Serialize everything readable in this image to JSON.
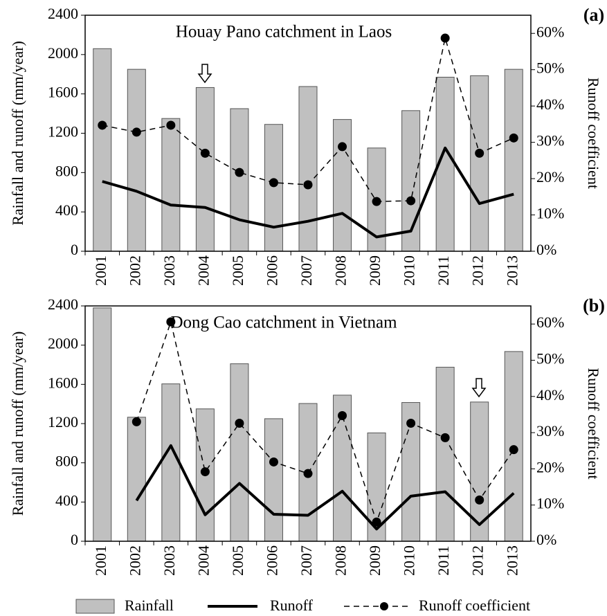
{
  "chart_data": [
    {
      "type": "combo",
      "panel_label": "(a)",
      "title": "Houay Pano catchment in Laos",
      "ylabel": "Rainfall and runoff  (mm/year)",
      "y2label": "Runoff coefficient",
      "categories": [
        "2001",
        "2002",
        "2003",
        "2004",
        "2005",
        "2006",
        "2007",
        "2008",
        "2009",
        "2010",
        "2011",
        "2012",
        "2013"
      ],
      "ylim": [
        0,
        2400
      ],
      "yticks": [
        0,
        400,
        800,
        1200,
        1600,
        2000,
        2400
      ],
      "y2lim": [
        0,
        65
      ],
      "y2ticks": [
        {
          "value": 0,
          "label": "0%"
        },
        {
          "value": 10,
          "label": "10%"
        },
        {
          "value": 20,
          "label": "20%"
        },
        {
          "value": 30,
          "label": "30%"
        },
        {
          "value": 40,
          "label": "40%"
        },
        {
          "value": 50,
          "label": "50%"
        },
        {
          "value": 60,
          "label": "60%"
        }
      ],
      "series": [
        {
          "name": "Rainfall",
          "type": "bar",
          "color": "#c0c0c0",
          "values": [
            2060,
            1850,
            1350,
            1665,
            1450,
            1290,
            1675,
            1340,
            1050,
            1430,
            1770,
            1785,
            1850
          ]
        },
        {
          "name": "Runoff",
          "type": "line",
          "color": "#000000",
          "values": [
            710,
            610,
            470,
            445,
            320,
            245,
            305,
            385,
            145,
            205,
            1050,
            485,
            580
          ]
        },
        {
          "name": "Runoff coefficient",
          "type": "line",
          "axis": "y2",
          "dashed": true,
          "marker": "circle",
          "color": "#000000",
          "values": [
            34.7,
            32.8,
            34.7,
            27.0,
            21.7,
            18.9,
            18.3,
            28.8,
            13.7,
            13.9,
            58.7,
            27.0,
            31.2
          ]
        }
      ]
    },
    {
      "type": "combo",
      "panel_label": "(b)",
      "title": "Dong Cao catchment in Vietnam",
      "ylabel": "Rainfall and runoff  (mm/year)",
      "y2label": "Runoff coefficient",
      "categories": [
        "2001",
        "2002",
        "2003",
        "2004",
        "2005",
        "2006",
        "2007",
        "2008",
        "2009",
        "2010",
        "2011",
        "2012",
        "2013"
      ],
      "ylim": [
        0,
        2400
      ],
      "yticks": [
        0,
        400,
        800,
        1200,
        1600,
        2000,
        2400
      ],
      "y2lim": [
        0,
        65
      ],
      "y2ticks": [
        {
          "value": 0,
          "label": "0%"
        },
        {
          "value": 10,
          "label": "10%"
        },
        {
          "value": 20,
          "label": "20%"
        },
        {
          "value": 30,
          "label": "30%"
        },
        {
          "value": 40,
          "label": "40%"
        },
        {
          "value": 50,
          "label": "50%"
        },
        {
          "value": 60,
          "label": "60%"
        }
      ],
      "series": [
        {
          "name": "Rainfall",
          "type": "bar",
          "color": "#c0c0c0",
          "values": [
            2380,
            1265,
            1605,
            1350,
            1810,
            1250,
            1405,
            1490,
            1105,
            1415,
            1775,
            1420,
            1935
          ]
        },
        {
          "name": "Runoff",
          "type": "line",
          "color": "#000000",
          "values": [
            null,
            415,
            975,
            270,
            590,
            275,
            265,
            510,
            125,
            460,
            505,
            170,
            490
          ]
        },
        {
          "name": "Runoff coefficient",
          "type": "line",
          "axis": "y2",
          "dashed": true,
          "marker": "circle",
          "color": "#000000",
          "values": [
            null,
            33.0,
            60.6,
            19.2,
            32.6,
            21.9,
            18.7,
            34.7,
            5.3,
            32.6,
            28.6,
            11.4,
            25.3
          ]
        }
      ]
    }
  ]
}
